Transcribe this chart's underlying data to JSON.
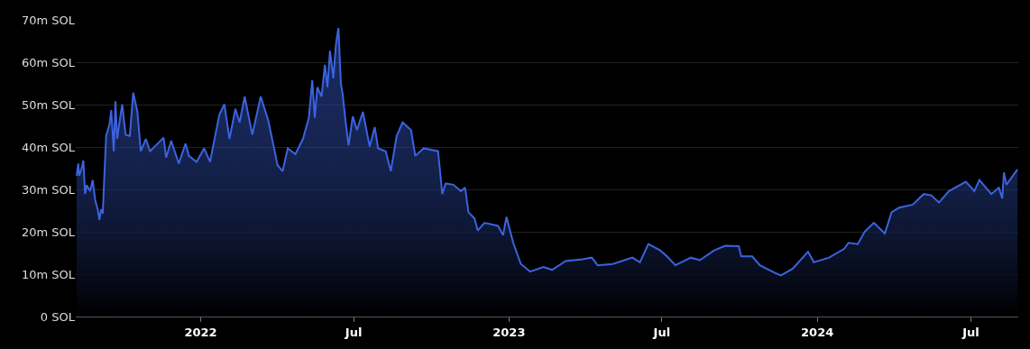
{
  "chart_data": {
    "type": "area",
    "x": [
      "2021-08-07",
      "2021-08-09",
      "2021-08-10",
      "2021-08-13",
      "2021-08-15",
      "2021-08-17",
      "2021-08-19",
      "2021-08-23",
      "2021-08-26",
      "2021-08-29",
      "2021-09-01",
      "2021-09-03",
      "2021-09-05",
      "2021-09-07",
      "2021-09-08",
      "2021-09-11",
      "2021-09-15",
      "2021-09-17",
      "2021-09-20",
      "2021-09-22",
      "2021-09-24",
      "2021-09-27",
      "2021-09-30",
      "2021-10-04",
      "2021-10-09",
      "2021-10-13",
      "2021-10-18",
      "2021-10-22",
      "2021-10-28",
      "2021-11-02",
      "2021-11-09",
      "2021-11-18",
      "2021-11-21",
      "2021-11-27",
      "2021-12-06",
      "2021-12-14",
      "2021-12-18",
      "2021-12-27",
      "2022-01-05",
      "2022-01-12",
      "2022-01-23",
      "2022-01-29",
      "2022-02-04",
      "2022-02-11",
      "2022-02-16",
      "2022-02-22",
      "2022-03-03",
      "2022-03-13",
      "2022-03-22",
      "2022-04-02",
      "2022-04-08",
      "2022-04-14",
      "2022-04-23",
      "2022-05-02",
      "2022-05-09",
      "2022-05-13",
      "2022-05-16",
      "2022-05-19",
      "2022-05-24",
      "2022-05-28",
      "2022-05-31",
      "2022-06-03",
      "2022-06-07",
      "2022-06-10",
      "2022-06-13",
      "2022-06-16",
      "2022-06-18",
      "2022-06-21",
      "2022-06-25",
      "2022-06-30",
      "2022-07-05",
      "2022-07-12",
      "2022-07-20",
      "2022-07-26",
      "2022-07-30",
      "2022-08-08",
      "2022-08-14",
      "2022-08-21",
      "2022-08-28",
      "2022-09-07",
      "2022-09-12",
      "2022-09-22",
      "2022-10-09",
      "2022-10-14",
      "2022-10-18",
      "2022-10-27",
      "2022-11-05",
      "2022-11-10",
      "2022-11-14",
      "2022-11-21",
      "2022-11-25",
      "2022-12-03",
      "2022-12-19",
      "2022-12-25",
      "2022-12-29",
      "2023-01-06",
      "2023-01-15",
      "2023-01-26",
      "2023-02-11",
      "2023-02-21",
      "2023-03-09",
      "2023-03-29",
      "2023-04-09",
      "2023-04-16",
      "2023-05-04",
      "2023-05-27",
      "2023-06-05",
      "2023-06-15",
      "2023-06-29",
      "2023-07-07",
      "2023-07-17",
      "2023-08-04",
      "2023-08-15",
      "2023-09-01",
      "2023-09-14",
      "2023-09-30",
      "2023-10-03",
      "2023-10-16",
      "2023-10-25",
      "2023-11-12",
      "2023-11-19",
      "2023-12-03",
      "2023-12-21",
      "2023-12-28",
      "2024-01-15",
      "2024-02-02",
      "2024-02-07",
      "2024-02-18",
      "2024-02-26",
      "2024-03-08",
      "2024-03-21",
      "2024-03-29",
      "2024-04-07",
      "2024-04-23",
      "2024-05-06",
      "2024-05-15",
      "2024-05-24",
      "2024-06-05",
      "2024-06-25",
      "2024-07-05",
      "2024-07-11",
      "2024-07-25",
      "2024-08-03",
      "2024-08-07",
      "2024-08-09",
      "2024-08-12",
      "2024-08-25"
    ],
    "series": [
      {
        "color": "#3b63e0",
        "values": [
          33.2,
          36.1,
          33.2,
          35,
          36.8,
          28.9,
          31,
          29.6,
          32.2,
          27.5,
          25.3,
          22.8,
          25.3,
          24.3,
          29.3,
          42.6,
          45.4,
          48.7,
          39,
          50.8,
          41.9,
          46.2,
          50.1,
          42.9,
          42.6,
          52.8,
          48.3,
          39,
          41.9,
          39,
          40.4,
          42.2,
          37.5,
          41.5,
          36.1,
          40.8,
          37.9,
          36.5,
          39.7,
          36.5,
          47.6,
          50.1,
          41.9,
          49,
          45.8,
          51.9,
          42.9,
          51.9,
          46.2,
          35.7,
          34.3,
          39.7,
          38.3,
          41.9,
          46.9,
          55.8,
          46.9,
          54.1,
          51.9,
          59.4,
          54.1,
          62.7,
          56.2,
          64.1,
          68.1,
          54.8,
          52.6,
          46.9,
          40.4,
          47.2,
          44,
          48.3,
          40.1,
          44.7,
          39.7,
          39,
          34.3,
          42.6,
          45.8,
          44,
          37.9,
          39.7,
          39,
          28.9,
          31.4,
          31.1,
          29.6,
          30.4,
          24.6,
          23.2,
          20.3,
          22.1,
          21.4,
          19.2,
          23.5,
          17.4,
          12.4,
          10.6,
          11.7,
          11,
          13.1,
          13.5,
          13.9,
          12.1,
          12.4,
          13.9,
          12.8,
          17.1,
          15.6,
          14.2,
          12.1,
          13.9,
          13.3,
          15.6,
          16.7,
          16.6,
          14.2,
          14.2,
          12.1,
          10.3,
          9.7,
          11.3,
          15.3,
          12.8,
          13.9,
          16,
          17.4,
          17.1,
          20,
          22.1,
          19.6,
          24.6,
          25.7,
          26.4,
          28.9,
          28.6,
          26.9,
          29.6,
          31.8,
          29.6,
          32.2,
          28.9,
          30.4,
          27.9,
          34,
          31.1,
          34.7
        ]
      }
    ],
    "xlim": [
      "2021-08-06",
      "2024-08-26"
    ],
    "xticks": [
      {
        "value": "2022-01-01",
        "label": "2022"
      },
      {
        "value": "2022-07-01",
        "label": "Jul"
      },
      {
        "value": "2023-01-01",
        "label": "2023"
      },
      {
        "value": "2023-07-01",
        "label": "Jul"
      },
      {
        "value": "2024-01-01",
        "label": "2024"
      },
      {
        "value": "2024-07-01",
        "label": "Jul"
      }
    ],
    "ylim": [
      0,
      70
    ],
    "yticks": [
      {
        "value": 0,
        "label": "0 SOL"
      },
      {
        "value": 10,
        "label": "10m SOL"
      },
      {
        "value": 20,
        "label": "20m SOL"
      },
      {
        "value": 30,
        "label": "30m SOL"
      },
      {
        "value": 40,
        "label": "40m SOL"
      },
      {
        "value": 50,
        "label": "50m SOL"
      },
      {
        "value": 60,
        "label": "60m SOL"
      },
      {
        "value": 70,
        "label": "70m SOL"
      }
    ],
    "grid": "y",
    "line_style": "solid",
    "marker": "none"
  }
}
